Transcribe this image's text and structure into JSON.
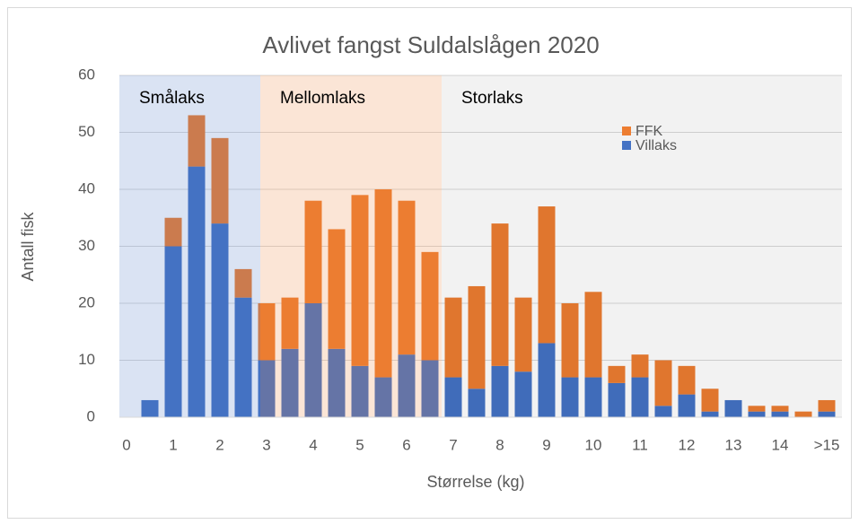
{
  "chart_data": {
    "type": "stacked_bar",
    "title": "Avlivet fangst Suldalslågen 2020",
    "xlabel": "Størrelse (kg)",
    "ylabel": "Antall fisk",
    "categories": [
      "0",
      null,
      "1",
      null,
      "2",
      null,
      "3",
      null,
      "4",
      null,
      "5",
      null,
      "6",
      null,
      "7",
      null,
      "8",
      null,
      "9",
      null,
      "10",
      null,
      "11",
      null,
      "12",
      null,
      "13",
      null,
      "14",
      null,
      ">15"
    ],
    "series": [
      {
        "name": "Villaks",
        "color": "#4472c4",
        "values": [
          0,
          3,
          30,
          44,
          34,
          21,
          10,
          12,
          20,
          12,
          9,
          7,
          11,
          10,
          7,
          5,
          9,
          8,
          13,
          7,
          7,
          6,
          7,
          2,
          4,
          1,
          3,
          1,
          1,
          0,
          1
        ]
      },
      {
        "name": "FFK",
        "color": "#ed7d31",
        "values": [
          0,
          0,
          5,
          9,
          15,
          5,
          10,
          9,
          18,
          21,
          30,
          33,
          27,
          19,
          14,
          18,
          25,
          13,
          24,
          13,
          15,
          3,
          4,
          8,
          5,
          4,
          0,
          1,
          1,
          1,
          2
        ]
      }
    ],
    "regions": [
      {
        "label": "Smålaks",
        "color": "#4472c4"
      },
      {
        "label": "Mellomlaks",
        "color": "#ed7d31"
      },
      {
        "label": "Storlaks",
        "color": "#000000"
      }
    ],
    "ylim": [
      0,
      60
    ],
    "yticks": [
      0,
      10,
      20,
      30,
      40,
      50,
      60
    ],
    "grid": true,
    "legend": "upper right"
  }
}
